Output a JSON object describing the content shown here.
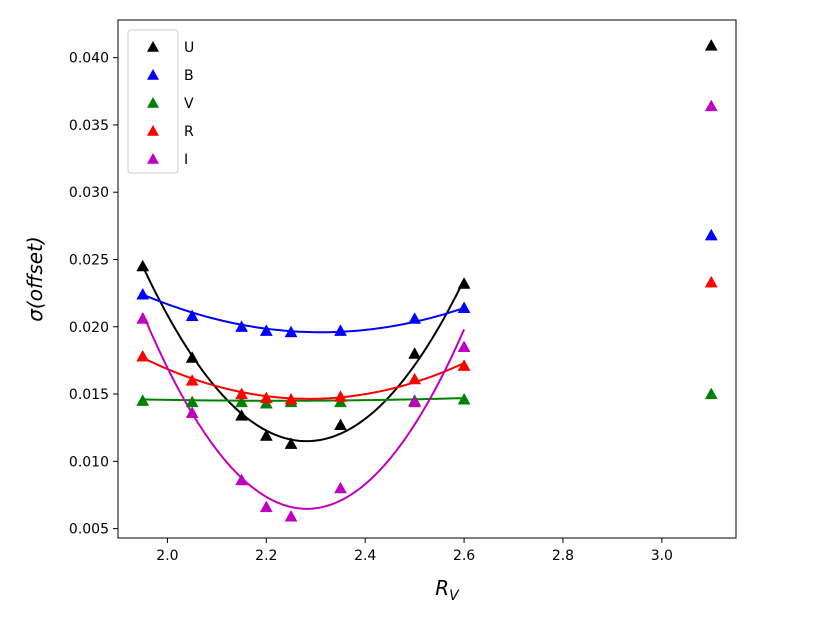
{
  "chart_data": {
    "type": "scatter",
    "xlabel": "R",
    "xlabel_sub": "V",
    "ylabel": "σ(offset)",
    "xlim": [
      1.9,
      3.15
    ],
    "ylim": [
      0.0043,
      0.0428
    ],
    "xticks": [
      2.0,
      2.2,
      2.4,
      2.6,
      2.8,
      3.0
    ],
    "xtick_labels": [
      "2.0",
      "2.2",
      "2.4",
      "2.6",
      "2.8",
      "3.0"
    ],
    "yticks": [
      0.005,
      0.01,
      0.015,
      0.02,
      0.025,
      0.03,
      0.035,
      0.04
    ],
    "ytick_labels": [
      "0.005",
      "0.010",
      "0.015",
      "0.020",
      "0.025",
      "0.030",
      "0.035",
      "0.040"
    ],
    "legend_position": "top-left",
    "grid": false,
    "series": [
      {
        "name": "U",
        "color": "#000000",
        "x": [
          1.95,
          2.05,
          2.15,
          2.2,
          2.25,
          2.35,
          2.5,
          2.6,
          3.1
        ],
        "y": [
          0.0245,
          0.0177,
          0.0134,
          0.0119,
          0.0113,
          0.0127,
          0.018,
          0.0232,
          0.0409
        ],
        "fit_x": [
          1.95,
          2.6
        ],
        "fit_y": [
          0.0245,
          0.0117,
          0.0235
        ]
      },
      {
        "name": "B",
        "color": "#0000ff",
        "x": [
          1.95,
          2.05,
          2.15,
          2.2,
          2.25,
          2.35,
          2.5,
          2.6,
          3.1
        ],
        "y": [
          0.0224,
          0.0208,
          0.02,
          0.0197,
          0.0196,
          0.0197,
          0.0206,
          0.0214,
          0.0268
        ],
        "fit_x": [
          1.95,
          2.6
        ],
        "fit_y": [
          0.0224,
          0.0197,
          0.0214
        ]
      },
      {
        "name": "V",
        "color": "#008000",
        "x": [
          1.95,
          2.05,
          2.15,
          2.2,
          2.25,
          2.35,
          2.5,
          2.6,
          3.1
        ],
        "y": [
          0.0145,
          0.0144,
          0.0144,
          0.0143,
          0.0144,
          0.0144,
          0.0145,
          0.0146,
          0.015
        ],
        "fit_x": [
          1.95,
          2.6
        ],
        "fit_y": [
          0.0146,
          0.0145,
          0.0147
        ]
      },
      {
        "name": "R",
        "color": "#ff0000",
        "x": [
          1.95,
          2.05,
          2.15,
          2.2,
          2.25,
          2.35,
          2.5,
          2.6,
          3.1
        ],
        "y": [
          0.0178,
          0.016,
          0.015,
          0.0147,
          0.0146,
          0.0148,
          0.0161,
          0.0171,
          0.0233
        ],
        "fit_x": [
          1.95,
          2.6
        ],
        "fit_y": [
          0.0177,
          0.0147,
          0.0173
        ]
      },
      {
        "name": "I",
        "color": "#bf00bf",
        "x": [
          1.95,
          2.05,
          2.15,
          2.2,
          2.25,
          2.35,
          2.5,
          2.6,
          3.1
        ],
        "y": [
          0.0206,
          0.0136,
          0.0086,
          0.0066,
          0.0059,
          0.008,
          0.0144,
          0.0185,
          0.0364
        ],
        "fit_x": [
          1.95,
          2.6
        ],
        "fit_y": [
          0.021,
          0.0067,
          0.0198
        ]
      }
    ]
  }
}
